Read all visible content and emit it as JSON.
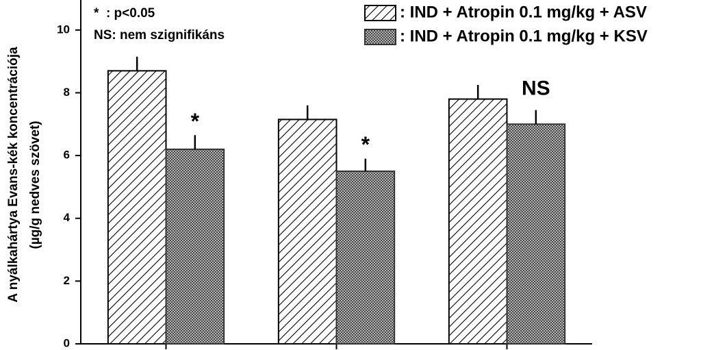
{
  "chart_data": {
    "type": "bar",
    "y_label": [
      "A nyálkahártya Evans-kék koncentrációja",
      "(µg/g nedves szövet)"
    ],
    "categories": [
      null,
      null,
      null
    ],
    "series": [
      {
        "name": ": IND + Atropin 0.1 mg/kg + ASV",
        "color": "#000000",
        "pattern": "hatch",
        "values": [
          8.7,
          7.15,
          7.8
        ],
        "errors": [
          0.45,
          0.45,
          0.45
        ]
      },
      {
        "name": ": IND + Atropin 0.1 mg/kg + KSV",
        "color": "#333333",
        "pattern": "crosshatch",
        "values": [
          6.2,
          5.5,
          7.0
        ],
        "errors": [
          0.45,
          0.4,
          0.45
        ]
      }
    ],
    "annotations": [
      {
        "text": "*",
        "category": 0
      },
      {
        "text": "*",
        "category": 1
      },
      {
        "text": "NS",
        "category": 2
      }
    ],
    "notes": [
      "*  : p<0.05",
      "NS: nem szignifikáns"
    ],
    "ylim": [
      0,
      11
    ],
    "yticks": [
      0,
      2,
      4,
      6,
      8,
      10
    ]
  }
}
